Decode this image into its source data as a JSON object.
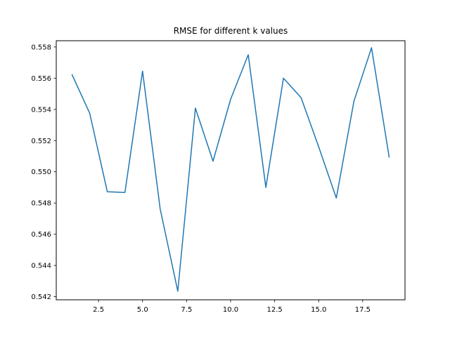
{
  "chart_data": {
    "type": "line",
    "title": "RMSE for different k values",
    "xlabel": "",
    "ylabel": "",
    "xlim": [
      0.1,
      19.9
    ],
    "ylim": [
      0.5418,
      0.5584
    ],
    "xticks": [
      2.5,
      5.0,
      7.5,
      10.0,
      12.5,
      15.0,
      17.5
    ],
    "xtick_labels": [
      "2.5",
      "5.0",
      "7.5",
      "10.0",
      "12.5",
      "15.0",
      "17.5"
    ],
    "yticks": [
      0.542,
      0.544,
      0.546,
      0.548,
      0.55,
      0.552,
      0.554,
      0.556,
      0.558
    ],
    "ytick_labels": [
      "0.542",
      "0.544",
      "0.546",
      "0.548",
      "0.550",
      "0.552",
      "0.554",
      "0.556",
      "0.558"
    ],
    "grid": false,
    "legend": "none",
    "series": [
      {
        "color": "#1f77b4",
        "x": [
          1,
          2,
          3,
          4,
          5,
          6,
          7,
          8,
          9,
          10,
          11,
          12,
          13,
          14,
          15,
          16,
          17,
          18,
          19
        ],
        "y": [
          0.55622,
          0.55375,
          0.54872,
          0.54868,
          0.55645,
          0.54762,
          0.54235,
          0.55408,
          0.55068,
          0.55465,
          0.5575,
          0.549,
          0.556,
          0.55475,
          0.5516,
          0.54832,
          0.55452,
          0.55795,
          0.55095
        ]
      }
    ]
  }
}
